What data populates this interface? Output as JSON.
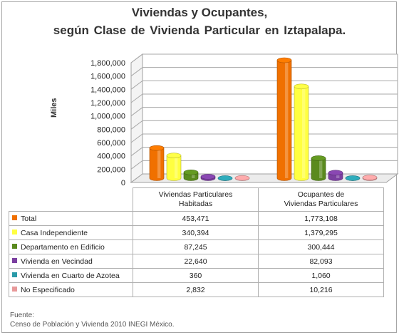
{
  "chart_data": {
    "type": "bar",
    "title": "Viviendas y Ocupantes,",
    "subtitle": "según  Clase de Vivienda Particular en Iztapalapa.",
    "ylabel": "Miles",
    "ylim": [
      0,
      1800000
    ],
    "yticks": [
      "0",
      "200,000",
      "400,000",
      "600,000",
      "800,000",
      "1,000,000",
      "1,200,000",
      "1,400,000",
      "1,600,000",
      "1,800,000"
    ],
    "grid": true,
    "categories": [
      "Viviendas Particulares Habitadas",
      "Ocupantes de Viviendas Particulares"
    ],
    "category_lines": [
      [
        "Viviendas Particulares",
        "Habitadas"
      ],
      [
        "Ocupantes de",
        "Viviendas Particulares"
      ]
    ],
    "series": [
      {
        "name": "Total",
        "color": "#f07000",
        "values": [
          453471,
          1773108
        ],
        "labels": [
          "453,471",
          "1,773,108"
        ]
      },
      {
        "name": "Casa Independiente",
        "color": "#ffff40",
        "values": [
          340394,
          1379295
        ],
        "labels": [
          "340,394",
          "1,379,295"
        ]
      },
      {
        "name": "Departamento en Edificio",
        "color": "#5a8a1e",
        "values": [
          87245,
          300444
        ],
        "labels": [
          "87,245",
          "300,444"
        ]
      },
      {
        "name": "Vivienda en Vecindad",
        "color": "#7b3fa0",
        "values": [
          22640,
          82093
        ],
        "labels": [
          "22,640",
          "82,093"
        ]
      },
      {
        "name": "Vivienda en Cuarto de Azotea",
        "color": "#2a9aa8",
        "values": [
          360,
          1060
        ],
        "labels": [
          "360",
          "1,060"
        ]
      },
      {
        "name": "No Especificado",
        "color": "#e8999a",
        "values": [
          2832,
          10216
        ],
        "labels": [
          "2,832",
          "10,216"
        ]
      }
    ]
  },
  "source": {
    "label": "Fuente:",
    "text": "Censo de Población y Vivienda 2010 INEGI México."
  }
}
